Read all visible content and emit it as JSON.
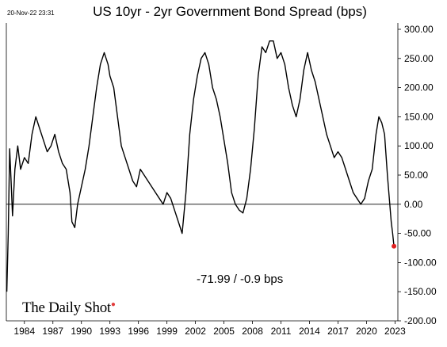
{
  "timestamp": "20-Nov-22 23:31",
  "logo": "The Daily Shot",
  "chart_data": {
    "type": "line",
    "title": "US 10yr - 2yr Government Bond Spread (bps)",
    "annotation": "-71.99  /  -0.9 bps",
    "xlabel": "",
    "ylabel": "",
    "xlim": [
      1982.1,
      2023.3
    ],
    "ylim": [
      -200,
      300
    ],
    "x_ticks": [
      "1984",
      "1987",
      "1990",
      "1993",
      "1996",
      "1999",
      "2002",
      "2005",
      "2008",
      "2011",
      "2014",
      "2017",
      "2020",
      "2023"
    ],
    "y_ticks": [
      "300.00",
      "250.00",
      "200.00",
      "150.00",
      "100.00",
      "50.00",
      "0.00",
      "-50.00",
      "-100.00",
      "-150.00",
      "-200.00"
    ],
    "y_axis_side": "right",
    "grid": false,
    "zero_line": true,
    "last_point": {
      "x": 2022.89,
      "y": -71.99,
      "color": "#e02020"
    },
    "series": [
      {
        "x": [
          1982.15,
          1982.3,
          1982.45,
          1982.6,
          1982.75,
          1983.0,
          1983.3,
          1983.6,
          1984.0,
          1984.4,
          1984.8,
          1985.2,
          1985.6,
          1986.0,
          1986.4,
          1986.8,
          1987.2,
          1987.6,
          1988.0,
          1988.4,
          1988.8,
          1989.0,
          1989.3,
          1989.6,
          1990.0,
          1990.4,
          1990.8,
          1991.2,
          1991.6,
          1992.0,
          1992.4,
          1992.8,
          1993.0,
          1993.4,
          1993.8,
          1994.2,
          1994.6,
          1995.0,
          1995.4,
          1995.8,
          1996.2,
          1996.6,
          1997.0,
          1997.4,
          1997.8,
          1998.2,
          1998.6,
          1999.0,
          1999.4,
          1999.8,
          2000.2,
          2000.6,
          2001.0,
          2001.4,
          2001.8,
          2002.2,
          2002.6,
          2003.0,
          2003.4,
          2003.8,
          2004.2,
          2004.6,
          2005.0,
          2005.4,
          2005.8,
          2006.2,
          2006.6,
          2007.0,
          2007.4,
          2007.8,
          2008.2,
          2008.6,
          2009.0,
          2009.4,
          2009.8,
          2010.2,
          2010.6,
          2011.0,
          2011.4,
          2011.8,
          2012.2,
          2012.6,
          2013.0,
          2013.4,
          2013.8,
          2014.2,
          2014.6,
          2015.0,
          2015.4,
          2015.8,
          2016.2,
          2016.6,
          2017.0,
          2017.4,
          2017.8,
          2018.2,
          2018.6,
          2019.0,
          2019.4,
          2019.8,
          2020.2,
          2020.6,
          2021.0,
          2021.3,
          2021.6,
          2021.9,
          2022.2,
          2022.4,
          2022.6,
          2022.75,
          2022.89
        ],
        "y": [
          -150,
          -50,
          95,
          40,
          -20,
          60,
          100,
          60,
          80,
          70,
          120,
          150,
          130,
          110,
          90,
          100,
          120,
          90,
          70,
          60,
          20,
          -30,
          -40,
          0,
          30,
          60,
          100,
          150,
          200,
          240,
          260,
          240,
          220,
          200,
          150,
          100,
          80,
          60,
          40,
          30,
          60,
          50,
          40,
          30,
          20,
          10,
          0,
          20,
          10,
          -10,
          -30,
          -50,
          20,
          120,
          180,
          220,
          250,
          260,
          240,
          200,
          180,
          150,
          110,
          70,
          20,
          0,
          -10,
          -15,
          10,
          60,
          130,
          220,
          270,
          260,
          280,
          280,
          250,
          260,
          240,
          200,
          170,
          150,
          180,
          230,
          260,
          230,
          210,
          180,
          150,
          120,
          100,
          80,
          90,
          80,
          60,
          40,
          20,
          10,
          0,
          10,
          40,
          60,
          120,
          150,
          140,
          120,
          50,
          10,
          -30,
          -50,
          -71.99
        ]
      }
    ]
  }
}
